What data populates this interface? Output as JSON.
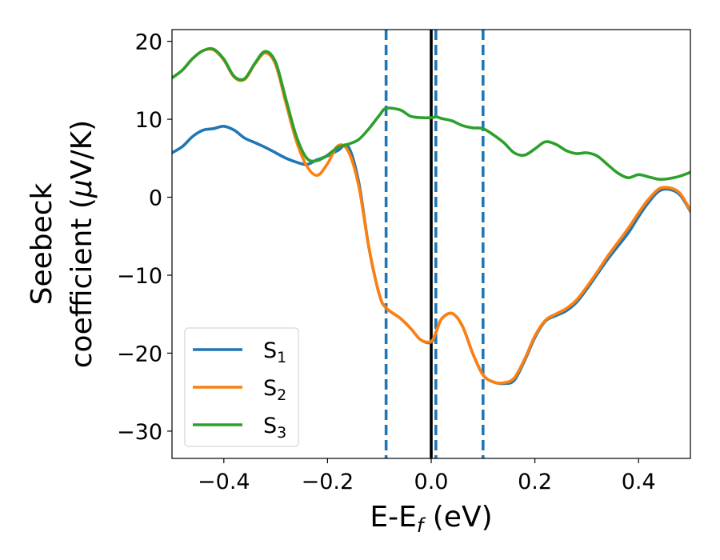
{
  "chart_data": {
    "type": "line",
    "xlabel": "E-E",
    "xlabel_sub": "f",
    "xlabel_unit": " (eV)",
    "ylabel_line1": "Seebeck",
    "ylabel_line2": "coefficient  (",
    "ylabel_mu": "μ",
    "ylabel_unit": "V/K)",
    "xlim": [
      -0.5,
      0.5
    ],
    "ylim": [
      -33.5,
      21.5
    ],
    "xticks": [
      -0.4,
      -0.2,
      0.0,
      0.2,
      0.4
    ],
    "xtick_labels": [
      "−0.4",
      "−0.2",
      "0.0",
      "0.2",
      "0.4"
    ],
    "yticks": [
      -30,
      -20,
      -10,
      0,
      10,
      20
    ],
    "ytick_labels": [
      "−30",
      "−20",
      "−10",
      "0",
      "10",
      "20"
    ],
    "grid": false,
    "legend_position": "bottom-left",
    "vlines": [
      {
        "x": 0.0,
        "style": "solid",
        "color": "#000000"
      },
      {
        "x": -0.087,
        "style": "dashed",
        "color": "#1f77b4"
      },
      {
        "x": 0.009,
        "style": "dashed",
        "color": "#1f77b4"
      },
      {
        "x": 0.1,
        "style": "dashed",
        "color": "#1f77b4"
      }
    ],
    "series": [
      {
        "name": "S",
        "sub": "1",
        "color": "#1f77b4",
        "x": [
          -0.5,
          -0.48,
          -0.46,
          -0.44,
          -0.42,
          -0.4,
          -0.38,
          -0.36,
          -0.34,
          -0.32,
          -0.3,
          -0.28,
          -0.26,
          -0.24,
          -0.22,
          -0.2,
          -0.18,
          -0.16,
          -0.14,
          -0.12,
          -0.1,
          -0.087,
          -0.06,
          -0.04,
          -0.02,
          0.0,
          0.01,
          0.02,
          0.04,
          0.06,
          0.08,
          0.1,
          0.12,
          0.14,
          0.16,
          0.18,
          0.2,
          0.22,
          0.24,
          0.26,
          0.28,
          0.3,
          0.32,
          0.34,
          0.36,
          0.38,
          0.4,
          0.42,
          0.44,
          0.46,
          0.48,
          0.5
        ],
        "y": [
          5.7,
          6.5,
          7.8,
          8.6,
          8.8,
          9.1,
          8.6,
          7.6,
          7.0,
          6.4,
          5.7,
          5.0,
          4.5,
          4.2,
          4.8,
          5.3,
          6.0,
          6.5,
          2.0,
          -6.5,
          -12.5,
          -14.2,
          -15.5,
          -16.8,
          -18.3,
          -18.6,
          -17.2,
          -15.6,
          -14.9,
          -16.5,
          -20.0,
          -22.8,
          -23.7,
          -23.9,
          -23.5,
          -21.0,
          -18.0,
          -15.9,
          -15.2,
          -14.6,
          -13.5,
          -11.8,
          -9.9,
          -8.0,
          -6.3,
          -4.6,
          -2.5,
          -0.6,
          0.8,
          1.0,
          0.3,
          -1.8
        ]
      },
      {
        "name": "S",
        "sub": "2",
        "color": "#ff7f0e",
        "x": [
          -0.5,
          -0.48,
          -0.46,
          -0.44,
          -0.42,
          -0.4,
          -0.38,
          -0.36,
          -0.34,
          -0.32,
          -0.3,
          -0.28,
          -0.26,
          -0.24,
          -0.22,
          -0.2,
          -0.18,
          -0.16,
          -0.14,
          -0.12,
          -0.1,
          -0.087,
          -0.06,
          -0.04,
          -0.02,
          0.0,
          0.01,
          0.02,
          0.04,
          0.06,
          0.08,
          0.1,
          0.12,
          0.14,
          0.16,
          0.18,
          0.2,
          0.22,
          0.24,
          0.26,
          0.28,
          0.3,
          0.32,
          0.34,
          0.36,
          0.38,
          0.4,
          0.42,
          0.44,
          0.46,
          0.48,
          0.5
        ],
        "y": [
          15.3,
          16.3,
          17.8,
          18.8,
          18.9,
          17.6,
          15.4,
          15.1,
          17.1,
          18.5,
          17.0,
          12.0,
          7.2,
          4.0,
          2.8,
          4.3,
          6.6,
          5.9,
          1.5,
          -6.5,
          -12.5,
          -14.2,
          -15.5,
          -16.8,
          -18.3,
          -18.5,
          -17.2,
          -15.6,
          -14.9,
          -16.5,
          -20.0,
          -22.8,
          -23.7,
          -23.8,
          -23.2,
          -20.8,
          -17.8,
          -15.8,
          -15.0,
          -14.3,
          -13.2,
          -11.5,
          -9.6,
          -7.6,
          -5.8,
          -4.0,
          -2.0,
          -0.2,
          1.1,
          1.2,
          0.5,
          -1.7
        ]
      },
      {
        "name": "S",
        "sub": "3",
        "color": "#2ca02c",
        "x": [
          -0.5,
          -0.48,
          -0.46,
          -0.44,
          -0.42,
          -0.4,
          -0.38,
          -0.36,
          -0.34,
          -0.32,
          -0.3,
          -0.28,
          -0.26,
          -0.24,
          -0.22,
          -0.2,
          -0.18,
          -0.16,
          -0.14,
          -0.12,
          -0.1,
          -0.087,
          -0.06,
          -0.04,
          -0.02,
          0.0,
          0.01,
          0.02,
          0.04,
          0.06,
          0.08,
          0.1,
          0.12,
          0.14,
          0.16,
          0.18,
          0.2,
          0.22,
          0.24,
          0.26,
          0.28,
          0.3,
          0.32,
          0.34,
          0.36,
          0.38,
          0.4,
          0.42,
          0.44,
          0.46,
          0.48,
          0.5
        ],
        "y": [
          15.3,
          16.3,
          17.8,
          18.8,
          19.0,
          17.7,
          15.5,
          15.2,
          17.2,
          18.7,
          17.3,
          12.5,
          7.8,
          5.0,
          4.7,
          5.4,
          6.4,
          6.8,
          7.4,
          8.8,
          10.5,
          11.4,
          11.2,
          10.4,
          10.2,
          10.2,
          10.3,
          10.1,
          9.8,
          9.2,
          8.9,
          8.8,
          8.0,
          7.0,
          5.7,
          5.4,
          6.2,
          7.1,
          6.8,
          6.0,
          5.6,
          5.7,
          5.3,
          4.2,
          3.1,
          2.5,
          2.9,
          2.6,
          2.3,
          2.4,
          2.7,
          3.2
        ]
      }
    ]
  }
}
